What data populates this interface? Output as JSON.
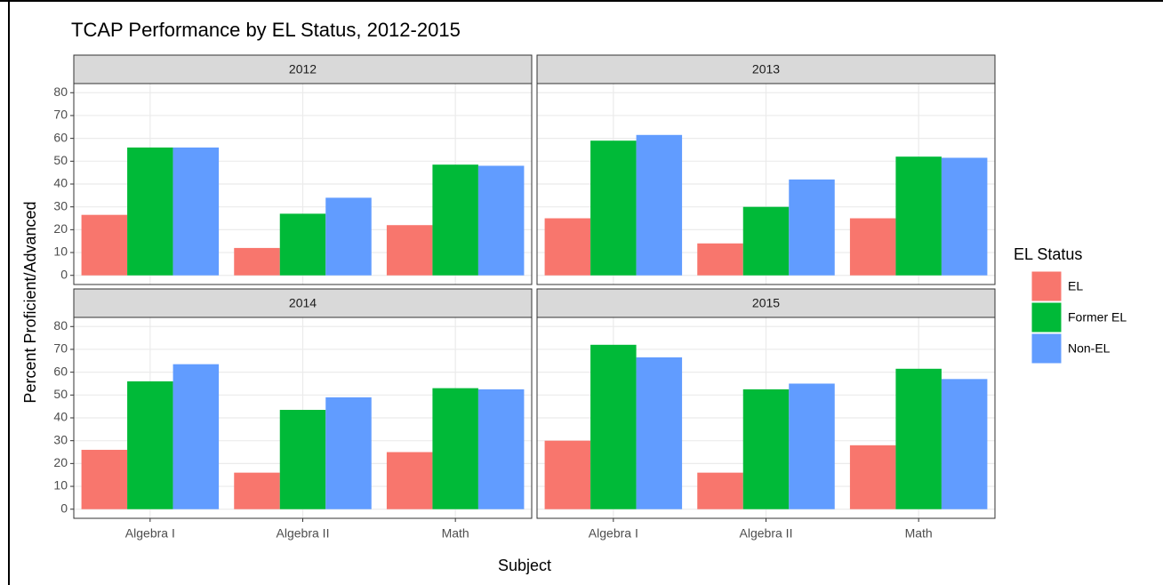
{
  "title": "TCAP Performance by EL Status, 2012-2015",
  "x_label": "Subject",
  "y_label": "Percent Proficient/Advanced",
  "legend_title": "EL Status",
  "chart_data": [
    {
      "type": "bar",
      "title": "2012",
      "categories": [
        null,
        null,
        null
      ],
      "series": [
        {
          "name": "EL",
          "color": "#F8766D",
          "values": [
            26.5,
            12,
            22
          ]
        },
        {
          "name": "Former EL",
          "color": "#00BA38",
          "values": [
            56,
            27,
            48.5
          ]
        },
        {
          "name": "Non-EL",
          "color": "#619CFF",
          "values": [
            56,
            34,
            48
          ]
        }
      ],
      "ylim": [
        -4,
        84
      ],
      "yticks": [
        0,
        10,
        20,
        30,
        40,
        50,
        60,
        70,
        80
      ],
      "grid": true
    },
    {
      "type": "bar",
      "title": "2013",
      "categories": [
        null,
        null,
        null
      ],
      "series": [
        {
          "name": "EL",
          "color": "#F8766D",
          "values": [
            25,
            14,
            25
          ]
        },
        {
          "name": "Former EL",
          "color": "#00BA38",
          "values": [
            59,
            30,
            52
          ]
        },
        {
          "name": "Non-EL",
          "color": "#619CFF",
          "values": [
            61.5,
            42,
            51.5
          ]
        }
      ],
      "ylim": [
        -4,
        84
      ],
      "yticks": [
        0,
        10,
        20,
        30,
        40,
        50,
        60,
        70,
        80
      ],
      "grid": true
    },
    {
      "type": "bar",
      "title": "2014",
      "categories": [
        "Algebra I",
        "Algebra II",
        "Math"
      ],
      "series": [
        {
          "name": "EL",
          "color": "#F8766D",
          "values": [
            26,
            16,
            25
          ]
        },
        {
          "name": "Former EL",
          "color": "#00BA38",
          "values": [
            56,
            43.5,
            53
          ]
        },
        {
          "name": "Non-EL",
          "color": "#619CFF",
          "values": [
            63.5,
            49,
            52.5
          ]
        }
      ],
      "ylim": [
        -4,
        84
      ],
      "yticks": [
        0,
        10,
        20,
        30,
        40,
        50,
        60,
        70,
        80
      ],
      "grid": true
    },
    {
      "type": "bar",
      "title": "2015",
      "categories": [
        "Algebra I",
        "Algebra II",
        "Math"
      ],
      "series": [
        {
          "name": "EL",
          "color": "#F8766D",
          "values": [
            30,
            16,
            28
          ]
        },
        {
          "name": "Former EL",
          "color": "#00BA38",
          "values": [
            72,
            52.5,
            61.5
          ]
        },
        {
          "name": "Non-EL",
          "color": "#619CFF",
          "values": [
            66.5,
            55,
            57
          ]
        }
      ],
      "ylim": [
        -4,
        84
      ],
      "yticks": [
        0,
        10,
        20,
        30,
        40,
        50,
        60,
        70,
        80
      ],
      "grid": true
    }
  ]
}
